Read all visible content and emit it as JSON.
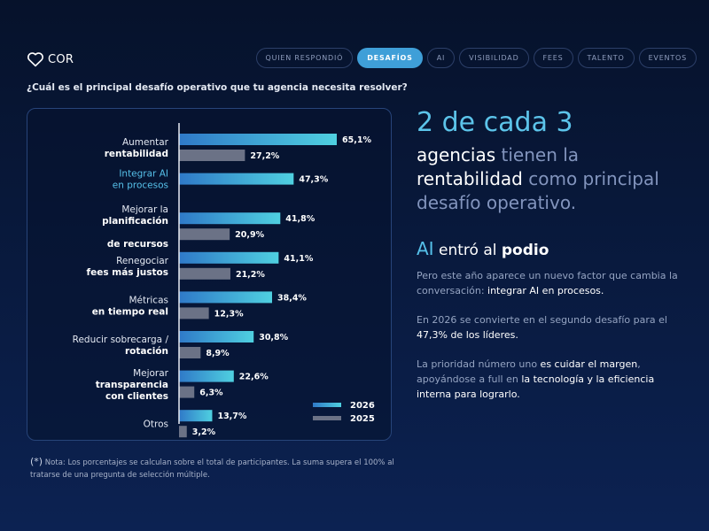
{
  "brand": {
    "logo_text": "COR"
  },
  "nav": {
    "tabs": [
      {
        "label": "QUIEN RESPONDIÓ",
        "active": false
      },
      {
        "label": "DESAFÍOS",
        "active": true
      },
      {
        "label": "AI",
        "active": false
      },
      {
        "label": "VISIBILIDAD",
        "active": false
      },
      {
        "label": "FEES",
        "active": false
      },
      {
        "label": "TALENTO",
        "active": false
      },
      {
        "label": "EVENTOS",
        "active": false
      }
    ]
  },
  "question": "¿Cuál es el principal desafío operativo que tu agencia necesita resolver?",
  "chart_data": {
    "type": "bar",
    "orientation": "horizontal",
    "categories": [
      {
        "lines": [
          [
            "Aumentar",
            ""
          ],
          [
            "rentabilidad",
            "b"
          ]
        ]
      },
      {
        "lines": [
          [
            "Integrar AI",
            "hl"
          ],
          [
            "en procesos",
            "hl"
          ]
        ]
      },
      {
        "lines": [
          [
            "Mejorar la ",
            ""
          ],
          [
            "planificación",
            "b"
          ],
          [
            "|",
            ""
          ],
          [
            "de recursos",
            "b"
          ]
        ]
      },
      {
        "lines": [
          [
            "Renegociar",
            ""
          ],
          [
            "fees más justos",
            "b"
          ]
        ]
      },
      {
        "lines": [
          [
            "Métricas",
            ""
          ],
          [
            "en tiempo real",
            "b"
          ]
        ]
      },
      {
        "lines": [
          [
            "Reducir sobrecarga /",
            ""
          ],
          [
            "rotación",
            "b"
          ]
        ]
      },
      {
        "lines": [
          [
            "Mejorar",
            ""
          ],
          [
            "transparencia",
            "b"
          ],
          [
            "con clientes",
            "b"
          ]
        ]
      },
      {
        "lines": [
          [
            "Otros",
            ""
          ]
        ]
      }
    ],
    "series": [
      {
        "name": "2026",
        "color": "#3fa7dc",
        "values": [
          65.1,
          47.3,
          41.8,
          41.1,
          38.4,
          30.8,
          22.6,
          13.7
        ],
        "labels": [
          "65,1%",
          "47,3%",
          "41,8%",
          "41,1%",
          "38,4%",
          "30,8%",
          "22,6%",
          "13,7%"
        ]
      },
      {
        "name": "2025",
        "color": "#6b7286",
        "values": [
          27.2,
          null,
          20.9,
          21.2,
          12.3,
          8.9,
          6.3,
          3.2
        ],
        "labels": [
          "27,2%",
          "",
          "20,9%",
          "21,2%",
          "12,3%",
          "8,9%",
          "6,3%",
          "3,2%"
        ]
      }
    ],
    "xlim": [
      0,
      65.1
    ],
    "legend_position": "bottom-right"
  },
  "footnote": {
    "star": "(*)",
    "text": "Nota: Los porcentajes se calculan sobre el total de participantes. La suma supera el 100% al tratarse de una pregunta de selección múltiple."
  },
  "insight": {
    "big": "2 de cada 3",
    "headline_1": "agencias",
    "headline_2": " tienen la",
    "headline_3": "rentabilidad",
    "headline_4": " como principal desafío operativo.",
    "ai_word": "AI",
    "ai_mid": " entró al ",
    "ai_end": "podio",
    "p1_a": "Pero este año aparece un nuevo factor que cambia la conversación: ",
    "p1_b": "integrar AI en procesos.",
    "p2_a": "En 2026 se convierte en el segundo desafío para el ",
    "p2_b": "47,3% de los líderes.",
    "p3_a": "La prioridad número uno ",
    "p3_b": "es cuidar el margen",
    "p3_c": ", apoyándose a full en ",
    "p3_d": "la tecnología y la eficiencia interna para lograrlo."
  },
  "colors": {
    "accent": "#3f9fd8",
    "highlight": "#56c1ea",
    "bar_2026": "#3fa7dc",
    "bar_2025": "#6b7286"
  }
}
